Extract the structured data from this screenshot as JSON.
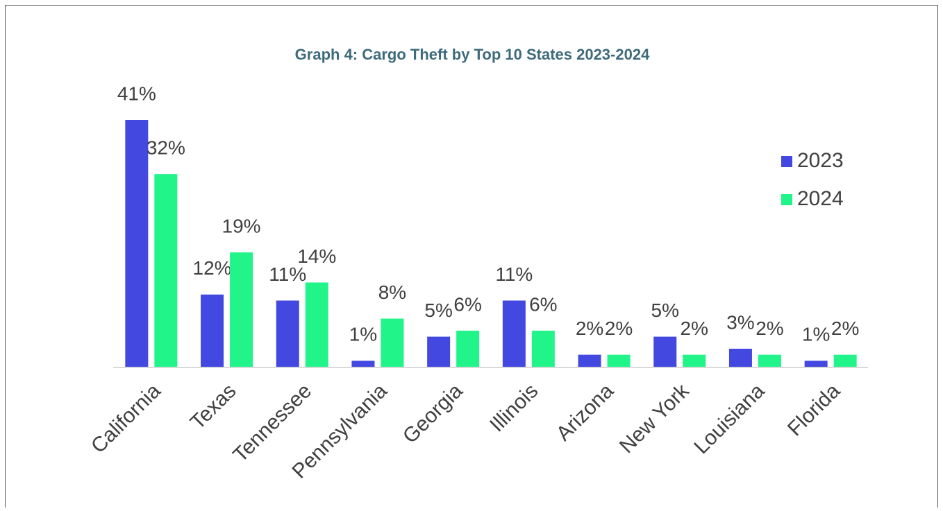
{
  "chart_data": {
    "type": "bar",
    "title": "Graph 4: Cargo Theft by Top 10 States 2023-2024",
    "categories": [
      "California",
      "Texas",
      "Tennessee",
      "Pennsylvania",
      "Georgia",
      "Illinois",
      "Arizona",
      "New York",
      "Louisiana",
      "Florida"
    ],
    "series": [
      {
        "name": "2023",
        "color": "#4348e0",
        "values": [
          41,
          12,
          11,
          1,
          5,
          11,
          2,
          5,
          3,
          1
        ],
        "value_labels": [
          "41%",
          "12%",
          "11%",
          "1%",
          "5%",
          "11%",
          "2%",
          "5%",
          "3%",
          "1%"
        ]
      },
      {
        "name": "2024",
        "color": "#21f58a",
        "values": [
          32,
          19,
          14,
          8,
          6,
          6,
          2,
          2,
          2,
          2
        ],
        "value_labels": [
          "32%",
          "19%",
          "14%",
          "8%",
          "6%",
          "6%",
          "2%",
          "2%",
          "2%",
          "2%"
        ]
      }
    ],
    "legend": "right"
  }
}
